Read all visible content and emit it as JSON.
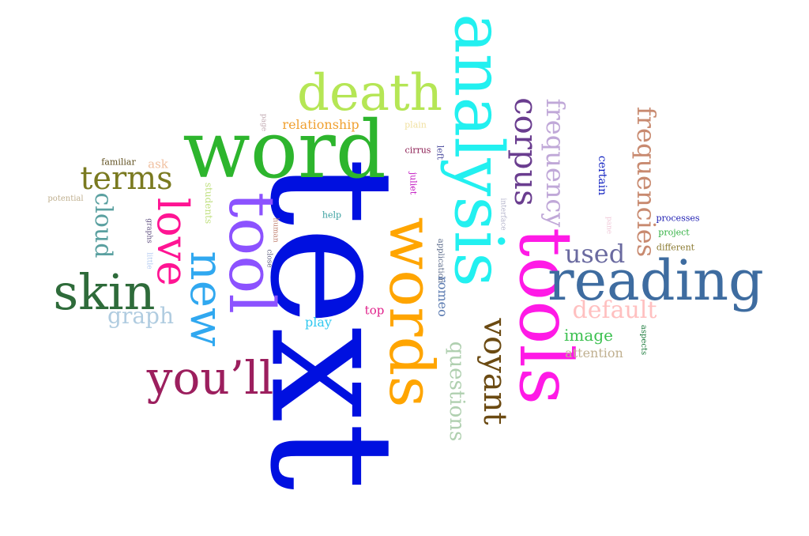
{
  "words": [
    {
      "id": "text",
      "text": "text",
      "color": "#0010e0",
      "vertical": true
    },
    {
      "id": "word",
      "text": "word",
      "color": "#2db52d",
      "vertical": false
    },
    {
      "id": "analysis",
      "text": "analysis",
      "color": "#22f0f0",
      "vertical": true
    },
    {
      "id": "tools",
      "text": "tools",
      "color": "#ff1ae6",
      "vertical": true
    },
    {
      "id": "words",
      "text": "words",
      "color": "#ffa500",
      "vertical": true
    },
    {
      "id": "death",
      "text": "death",
      "color": "#b5e655",
      "vertical": false
    },
    {
      "id": "tool",
      "text": "tool",
      "color": "#8c52ff",
      "vertical": true
    },
    {
      "id": "reading",
      "text": "reading",
      "color": "#3e6ca0",
      "vertical": false
    },
    {
      "id": "skin",
      "text": "skin",
      "color": "#2e6b3a",
      "vertical": false
    },
    {
      "id": "youll",
      "text": "you’ll",
      "color": "#9c1f5e",
      "vertical": false
    },
    {
      "id": "new",
      "text": "new",
      "color": "#30a8f0",
      "vertical": true
    },
    {
      "id": "love",
      "text": "love",
      "color": "#ff1493",
      "vertical": true
    },
    {
      "id": "terms",
      "text": "terms",
      "color": "#7a7a20",
      "vertical": false
    },
    {
      "id": "corpus",
      "text": "corpus",
      "color": "#6a3d8f",
      "vertical": true
    },
    {
      "id": "voyant",
      "text": "voyant",
      "color": "#6b4a12",
      "vertical": true
    },
    {
      "id": "frequencies",
      "text": "frequencies",
      "color": "#c88a70",
      "vertical": true
    },
    {
      "id": "frequency",
      "text": "frequency",
      "color": "#c0a8d8",
      "vertical": true
    },
    {
      "id": "cloud",
      "text": "cloud",
      "color": "#5aa0a0",
      "vertical": true
    },
    {
      "id": "graph",
      "text": "graph",
      "color": "#b0cce0",
      "vertical": false
    },
    {
      "id": "used",
      "text": "used",
      "color": "#6a6aa0",
      "vertical": false
    },
    {
      "id": "default",
      "text": "default",
      "color": "#ffc0c0",
      "vertical": false
    },
    {
      "id": "questions",
      "text": "questions",
      "color": "#b0d0b0",
      "vertical": true
    },
    {
      "id": "image",
      "text": "image",
      "color": "#3cc050",
      "vertical": false
    },
    {
      "id": "attention",
      "text": "attention",
      "color": "#c0b090",
      "vertical": false
    },
    {
      "id": "relationship",
      "text": "relationship",
      "color": "#f0a030",
      "vertical": false
    },
    {
      "id": "play",
      "text": "play",
      "color": "#30c8f0",
      "vertical": false
    },
    {
      "id": "top",
      "text": "top",
      "color": "#e0208a",
      "vertical": false
    },
    {
      "id": "romeo",
      "text": "romeo",
      "color": "#5a7ab0",
      "vertical": true
    },
    {
      "id": "certain",
      "text": "certain",
      "color": "#1020c0",
      "vertical": true
    },
    {
      "id": "ask",
      "text": "ask",
      "color": "#f0c0a0",
      "vertical": false
    },
    {
      "id": "familiar",
      "text": "familiar",
      "color": "#605020",
      "vertical": false
    },
    {
      "id": "potential",
      "text": "potential",
      "color": "#c0b090",
      "vertical": false
    },
    {
      "id": "students",
      "text": "students",
      "color": "#c0e080",
      "vertical": true
    },
    {
      "id": "graphs",
      "text": "graphs",
      "color": "#605080",
      "vertical": true
    },
    {
      "id": "little",
      "text": "little",
      "color": "#b0c8f0",
      "vertical": true
    },
    {
      "id": "human",
      "text": "human",
      "color": "#c08070",
      "vertical": true
    },
    {
      "id": "close",
      "text": "close",
      "color": "#606080",
      "vertical": true
    },
    {
      "id": "help",
      "text": "help",
      "color": "#3aa0a0",
      "vertical": false
    },
    {
      "id": "cirrus",
      "text": "cirrus",
      "color": "#8a1a50",
      "vertical": false
    },
    {
      "id": "left",
      "text": "left",
      "color": "#5050a0",
      "vertical": true
    },
    {
      "id": "juliet",
      "text": "juliet",
      "color": "#c010c0",
      "vertical": true
    },
    {
      "id": "application",
      "text": "application",
      "color": "#5a6a8a",
      "vertical": true
    },
    {
      "id": "plain",
      "text": "plain",
      "color": "#f0e0a0",
      "vertical": false
    },
    {
      "id": "page",
      "text": "page",
      "color": "#c0a8b0",
      "vertical": true
    },
    {
      "id": "interface",
      "text": "interface",
      "color": "#b0b0c8",
      "vertical": true
    },
    {
      "id": "pane",
      "text": "pane",
      "color": "#f0c8d8",
      "vertical": true
    },
    {
      "id": "processes",
      "text": "processes",
      "color": "#1a1ab0",
      "vertical": false
    },
    {
      "id": "project",
      "text": "project",
      "color": "#30b040",
      "vertical": false
    },
    {
      "id": "different",
      "text": "different",
      "color": "#8a7a30",
      "vertical": false
    },
    {
      "id": "aspects",
      "text": "aspects",
      "color": "#1a7a3a",
      "vertical": true
    }
  ]
}
